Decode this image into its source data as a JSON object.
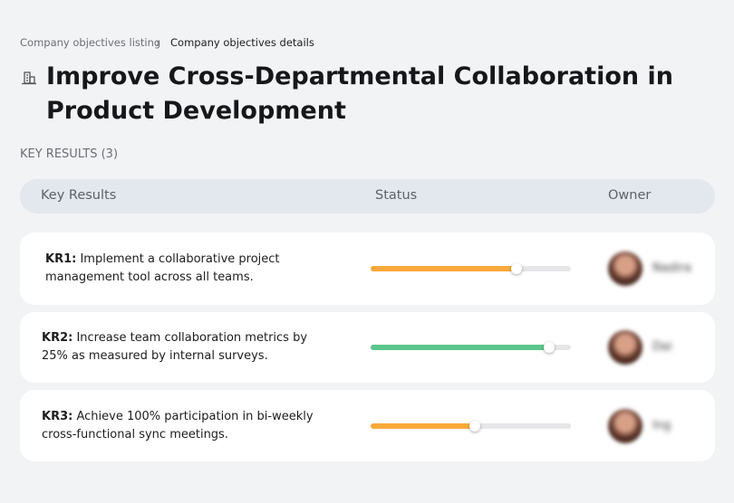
{
  "breadcrumb": {
    "parent": "Company objectives listing",
    "separator": "›",
    "current": "Company objectives details"
  },
  "title": "Improve Cross-Departmental Collaboration in Product Development",
  "section_label": "KEY RESULTS (3)",
  "table": {
    "headers": [
      "Key Results",
      "Status",
      "Owner"
    ],
    "rows": [
      {
        "label": "KR1:",
        "text": "Implement a collaborative project management tool across all teams.",
        "progress": 73,
        "color": "#f9a93a",
        "owner": "Nadira"
      },
      {
        "label": "KR2:",
        "text": "Increase team collaboration metrics by 25% as measured by internal surveys.",
        "progress": 89,
        "color": "#5bc58c",
        "owner": "Dai"
      },
      {
        "label": "KR3:",
        "text": "Achieve 100% participation in bi-weekly cross-functional sync meetings.",
        "progress": 52,
        "color": "#f9a93a",
        "owner": "Ing"
      }
    ]
  }
}
